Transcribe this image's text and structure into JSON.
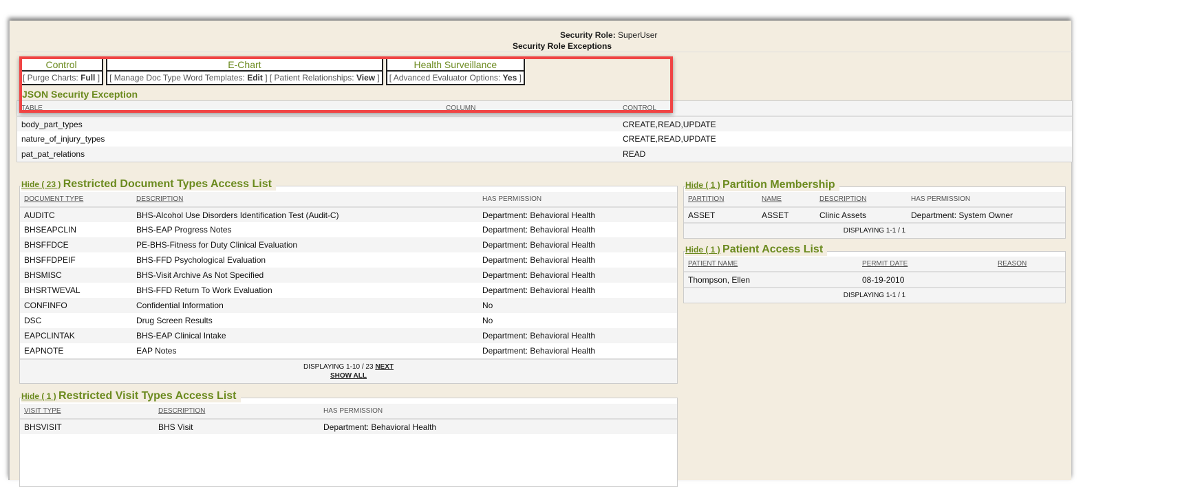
{
  "security_role": {
    "label": "Security Role:",
    "value": "SuperUser"
  },
  "exceptions": {
    "title": "Security Role Exceptions",
    "groups": [
      {
        "name": "Control",
        "items": [
          {
            "label": "Purge Charts:",
            "value": "Full"
          }
        ]
      },
      {
        "name": "E-Chart",
        "items": [
          {
            "label": "Manage Doc Type Word Templates:",
            "value": "Edit"
          },
          {
            "label": "Patient Relationships:",
            "value": "View"
          }
        ]
      },
      {
        "name": "Health Surveillance",
        "items": [
          {
            "label": "Advanced Evaluator Options:",
            "value": "Yes"
          }
        ]
      }
    ]
  },
  "json_exception": {
    "title": "JSON Security Exception",
    "columns": [
      "TABLE",
      "COLUMN",
      "CONTROL"
    ],
    "rows": [
      [
        "body_part_types",
        "",
        "CREATE,READ,UPDATE"
      ],
      [
        "nature_of_injury_types",
        "",
        "CREATE,READ,UPDATE"
      ],
      [
        "pat_pat_relations",
        "",
        "READ"
      ]
    ]
  },
  "doc_types": {
    "hide": "Hide ( 23 )",
    "title": "Restricted Document Types Access List",
    "columns": [
      "DOCUMENT TYPE",
      "DESCRIPTION",
      "HAS PERMISSION"
    ],
    "rows": [
      [
        "AUDITC",
        "BHS-Alcohol Use Disorders Identification Test (Audit-C)",
        "Department: Behavioral Health"
      ],
      [
        "BHSEAPCLIN",
        "BHS-EAP Progress Notes",
        "Department: Behavioral Health"
      ],
      [
        "BHSFFDCE",
        "PE-BHS-Fitness for Duty Clinical Evaluation",
        "Department: Behavioral Health"
      ],
      [
        "BHSFFDPEIF",
        "BHS-FFD Psychological Evaluation",
        "Department: Behavioral Health"
      ],
      [
        "BHSMISC",
        "BHS-Visit Archive As Not Specified",
        "Department: Behavioral Health"
      ],
      [
        "BHSRTWEVAL",
        "BHS-FFD Return To Work Evaluation",
        "Department: Behavioral Health"
      ],
      [
        "CONFINFO",
        "Confidential Information",
        "No"
      ],
      [
        "DSC",
        "Drug Screen Results",
        "No"
      ],
      [
        "EAPCLINTAK",
        "BHS-EAP Clinical Intake",
        "Department: Behavioral Health"
      ],
      [
        "EAPNOTE",
        "EAP Notes",
        "Department: Behavioral Health"
      ]
    ],
    "displaying": "DISPLAYING 1-10 / 23",
    "next": "NEXT",
    "show_all": "SHOW ALL"
  },
  "visit_types": {
    "hide": "Hide ( 1 )",
    "title": "Restricted Visit Types Access List",
    "columns": [
      "VISIT TYPE",
      "DESCRIPTION",
      "HAS PERMISSION"
    ],
    "rows": [
      [
        "BHSVISIT",
        "BHS Visit",
        "Department: Behavioral Health"
      ]
    ]
  },
  "partition": {
    "hide": "Hide ( 1 )",
    "title": "Partition Membership",
    "columns": [
      "PARTITION",
      "NAME",
      "DESCRIPTION",
      "HAS PERMISSION"
    ],
    "rows": [
      [
        "ASSET",
        "ASSET",
        "Clinic Assets",
        "Department: System Owner"
      ]
    ],
    "displaying": "DISPLAYING 1-1 / 1"
  },
  "patient_access": {
    "hide": "Hide ( 1 )",
    "title": "Patient Access List",
    "columns": [
      "PATIENT NAME",
      "PERMIT DATE",
      "REASON"
    ],
    "rows": [
      [
        "Thompson, Ellen",
        "08-19-2010",
        ""
      ]
    ],
    "displaying": "DISPLAYING 1-1 / 1"
  }
}
